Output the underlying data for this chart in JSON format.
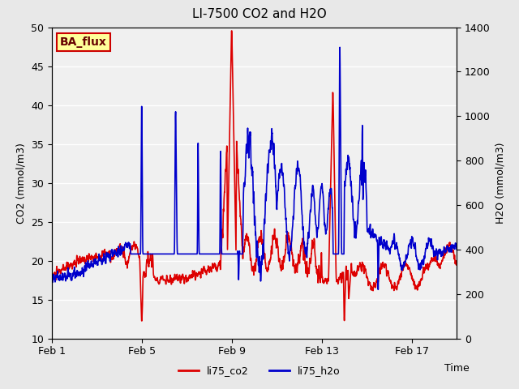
{
  "title": "LI-7500 CO2 and H2O",
  "xlabel": "Time",
  "ylabel_left": "CO2 (mmol/m3)",
  "ylabel_right": "H2O (mmol/m3)",
  "ylim_left": [
    10,
    50
  ],
  "ylim_right": [
    0,
    1400
  ],
  "legend_labels": [
    "li75_co2",
    "li75_h2o"
  ],
  "legend_colors": [
    "red",
    "blue"
  ],
  "xtick_labels": [
    "Feb 1",
    "Feb 5",
    "Feb 9",
    "Feb 13",
    "Feb 17"
  ],
  "xtick_positions": [
    0,
    4,
    8,
    12,
    16
  ],
  "watermark_text": "BA_flux",
  "watermark_bg": "#ffff99",
  "watermark_border": "#cc0000",
  "watermark_text_color": "#660000",
  "bg_color": "#e8e8e8",
  "plot_bg_color": "#f0f0f0",
  "co2_color": "#dd0000",
  "h2o_color": "#0000cc",
  "title_fontsize": 11,
  "axis_label_fontsize": 9,
  "tick_fontsize": 9,
  "legend_fontsize": 9
}
